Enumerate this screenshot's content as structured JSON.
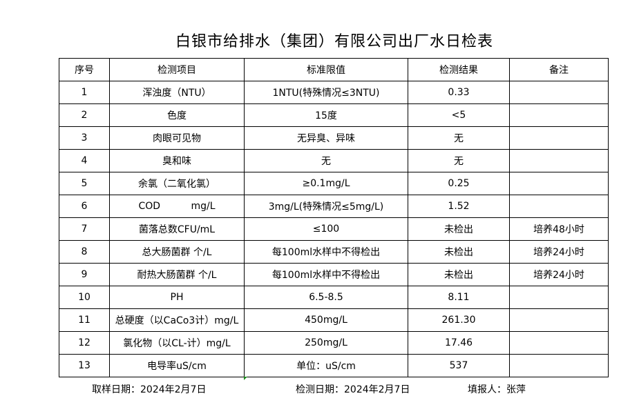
{
  "title": "白银市给排水（集团）有限公司出厂水日检表",
  "headers": [
    "序号",
    "检测项目",
    "标准限值",
    "检测结果",
    "备注"
  ],
  "rows": [
    [
      "1",
      "浑浊度（NTU）",
      "1NTU(特殊情况≤3NTU)",
      "0.33",
      ""
    ],
    [
      "2",
      "色度",
      "15度",
      "<5",
      ""
    ],
    [
      "3",
      "肉眼可见物",
      "无异臭、异味",
      "无",
      ""
    ],
    [
      "4",
      "臭和味",
      "无",
      "无",
      ""
    ],
    [
      "5",
      "余氯（二氧化氯）",
      "≥0.1mg/L",
      "0.25",
      ""
    ],
    [
      "6",
      "COD          mg/L",
      "3mg/L(特殊情况≤5mg/L)",
      "1.52",
      ""
    ],
    [
      "7",
      "菌落总数CFU/mL",
      "≤100",
      "未检出",
      "培养48小时"
    ],
    [
      "8",
      "总大肠菌群 个/L",
      "每100ml水样中不得检出",
      "未检出",
      "培养24小时"
    ],
    [
      "9",
      "耐热大肠菌群 个/L",
      "每100ml水样中不得检出",
      "未检出",
      "培养24小时"
    ],
    [
      "10",
      "PH",
      "6.5-8.5",
      "8.11",
      ""
    ],
    [
      "11",
      "总硬度（以CaCo3计）mg/L",
      "450mg/L",
      "261.30",
      ""
    ],
    [
      "12",
      "氯化物（以CL-计）mg/L",
      "250mg/L",
      "17.46",
      ""
    ],
    [
      "13",
      "电导率uS/cm",
      "单位：uS/cm",
      "537",
      ""
    ]
  ],
  "footer": {
    "sample_date": "取样日期：2024年2月7日",
    "test_date": "检测日期：2024年2月7日",
    "reporter": "填报人：张萍"
  }
}
